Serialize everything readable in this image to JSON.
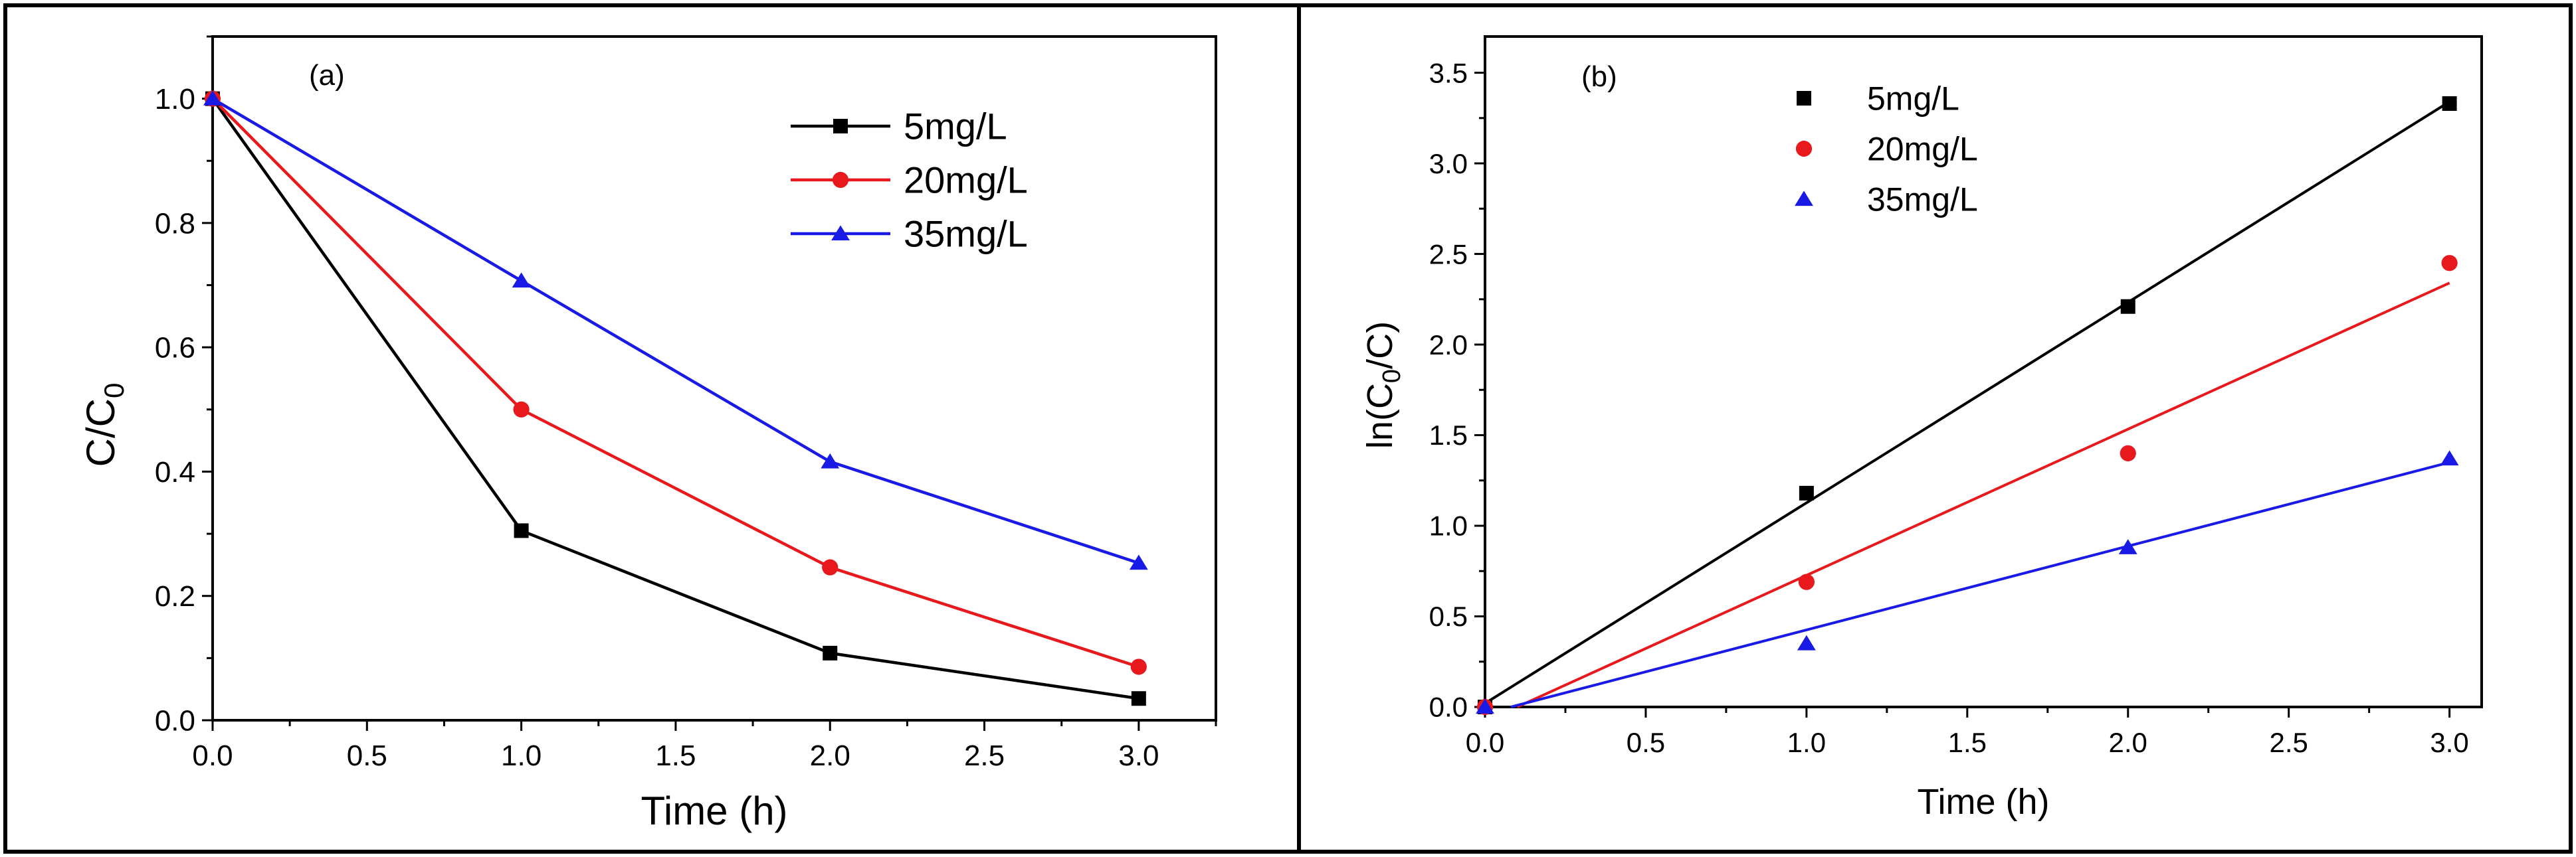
{
  "chart_data": [
    {
      "type": "line",
      "panel_label": "(a)",
      "xlabel": "Time (h)",
      "ylabel_main": "C/C",
      "ylabel_sub": "0",
      "xlim": [
        0,
        3.25
      ],
      "ylim": [
        0,
        1.1
      ],
      "x_ticks": [
        "0.0",
        "0.5",
        "1.0",
        "1.5",
        "2.0",
        "2.5",
        "3.0"
      ],
      "y_ticks": [
        "0.0",
        "0.2",
        "0.4",
        "0.6",
        "0.8",
        "1.0"
      ],
      "legend_position": "top-right",
      "x": [
        0,
        1,
        2,
        3
      ],
      "series": [
        {
          "name": "5mg/L",
          "marker": "square",
          "color": "#000000",
          "values": [
            1.0,
            0.305,
            0.108,
            0.035
          ]
        },
        {
          "name": "20mg/L",
          "marker": "circle",
          "color": "#e8191d",
          "values": [
            1.0,
            0.5,
            0.246,
            0.086
          ]
        },
        {
          "name": "35mg/L",
          "marker": "triangle",
          "color": "#1a1ae6",
          "values": [
            1.0,
            0.707,
            0.416,
            0.253
          ]
        }
      ]
    },
    {
      "type": "scatter",
      "panel_label": "(b)",
      "xlabel": "Time (h)",
      "ylabel_pre": "ln(C",
      "ylabel_sub": "0",
      "ylabel_post": "/C)",
      "xlim": [
        0,
        3.1
      ],
      "ylim": [
        0,
        3.7
      ],
      "x_ticks": [
        "0.0",
        "0.5",
        "1.0",
        "1.5",
        "2.0",
        "2.5",
        "3.0"
      ],
      "y_ticks": [
        "0.0",
        "0.5",
        "1.0",
        "1.5",
        "2.0",
        "2.5",
        "3.0",
        "3.5"
      ],
      "legend_position": "top-left",
      "x": [
        0,
        1,
        2,
        3
      ],
      "series": [
        {
          "name": "5mg/L",
          "marker": "square",
          "color": "#000000",
          "values": [
            0,
            1.18,
            2.21,
            3.33
          ],
          "fit": [
            [
              0,
              0.02
            ],
            [
              3,
              3.34
            ]
          ]
        },
        {
          "name": "20mg/L",
          "marker": "circle",
          "color": "#e8191d",
          "values": [
            0,
            0.69,
            1.4,
            2.45
          ],
          "fit": [
            [
              0.1,
              0
            ],
            [
              3,
              2.34
            ]
          ]
        },
        {
          "name": "35mg/L",
          "marker": "triangle",
          "color": "#1a1ae6",
          "values": [
            0,
            0.35,
            0.88,
            1.37
          ],
          "fit": [
            [
              0.08,
              0
            ],
            [
              3,
              1.35
            ]
          ]
        }
      ]
    }
  ]
}
